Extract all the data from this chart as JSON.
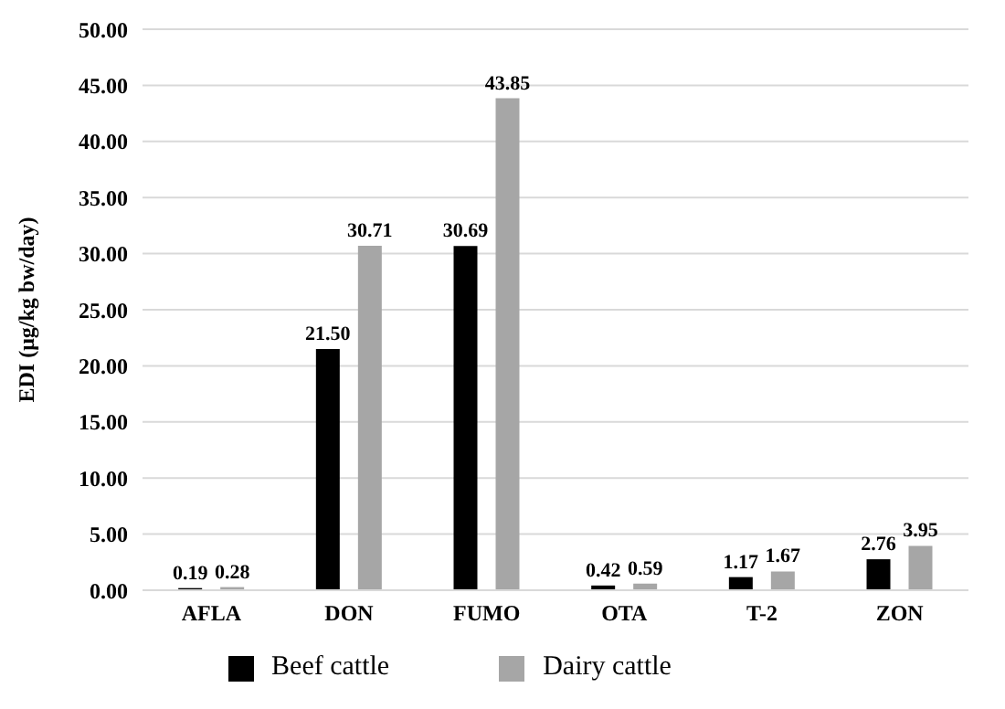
{
  "chart_data": {
    "type": "bar",
    "ylabel": "EDI (μg/kg bw/day)",
    "categories": [
      "AFLA",
      "DON",
      "FUMO",
      "OTA",
      "T-2",
      "ZON"
    ],
    "series": [
      {
        "name": "Beef cattle",
        "color": "#000000",
        "values": [
          0.19,
          21.5,
          30.69,
          0.42,
          1.17,
          2.76
        ],
        "value_labels": [
          "0.19",
          "21.50",
          "30.69",
          "0.42",
          "1.17",
          "2.76"
        ]
      },
      {
        "name": "Dairy cattle",
        "color": "#a6a6a6",
        "values": [
          0.28,
          30.71,
          43.85,
          0.59,
          1.67,
          3.95
        ],
        "value_labels": [
          "0.28",
          "30.71",
          "43.85",
          "0.59",
          "1.67",
          "3.95"
        ]
      }
    ],
    "ylim": [
      0,
      50
    ],
    "yticks": [
      {
        "value": 0,
        "label": "0.00"
      },
      {
        "value": 5,
        "label": "5.00"
      },
      {
        "value": 10,
        "label": "10.00"
      },
      {
        "value": 15,
        "label": "15.00"
      },
      {
        "value": 20,
        "label": "20.00"
      },
      {
        "value": 25,
        "label": "25.00"
      },
      {
        "value": 30,
        "label": "30.00"
      },
      {
        "value": 35,
        "label": "35.00"
      },
      {
        "value": 40,
        "label": "40.00"
      },
      {
        "value": 45,
        "label": "45.00"
      },
      {
        "value": 50,
        "label": "50.00"
      }
    ],
    "grid": "y",
    "legend": "bottom"
  }
}
